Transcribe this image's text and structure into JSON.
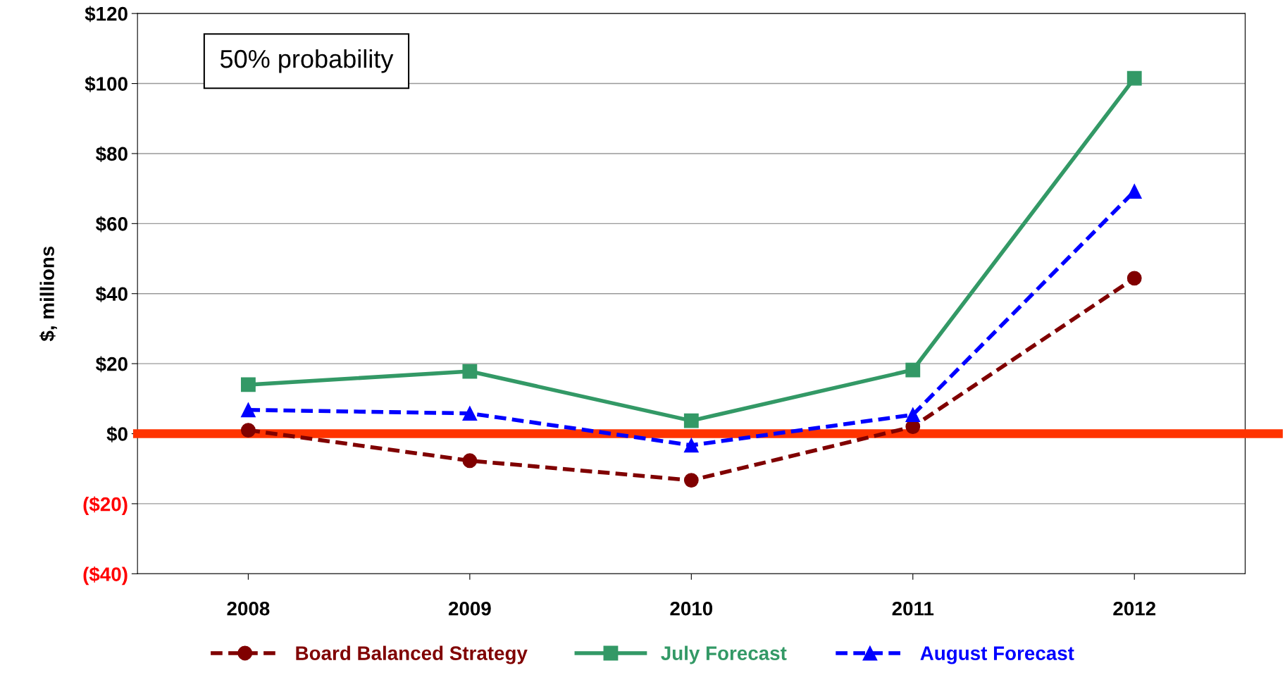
{
  "chart_data": {
    "type": "line",
    "ylabel": "$, millions",
    "categories": [
      "2008",
      "2009",
      "2010",
      "2011",
      "2012"
    ],
    "series": [
      {
        "name": "Board Balanced Strategy",
        "color": "#800000",
        "values": [
          1,
          -7.7,
          -13.3,
          2,
          44.4
        ],
        "marker": "circle",
        "line_style": "dashed"
      },
      {
        "name": "July Forecast",
        "color": "#339966",
        "values": [
          14,
          17.8,
          3.7,
          18.2,
          101.5
        ],
        "marker": "square",
        "line_style": "solid"
      },
      {
        "name": "August Forecast",
        "color": "#0000ff",
        "values": [
          6.8,
          5.8,
          -3.3,
          5.4,
          69.2
        ],
        "marker": "triangle",
        "line_style": "dashed"
      }
    ],
    "ylim": [
      -40,
      120
    ],
    "yticks": [
      {
        "value": -40,
        "label": "($40)"
      },
      {
        "value": -20,
        "label": "($20)"
      },
      {
        "value": 0,
        "label": "$0"
      },
      {
        "value": 20,
        "label": "$20"
      },
      {
        "value": 40,
        "label": "$40"
      },
      {
        "value": 60,
        "label": "$60"
      },
      {
        "value": 80,
        "label": "$80"
      },
      {
        "value": 100,
        "label": "$100"
      },
      {
        "value": 120,
        "label": "$120"
      }
    ],
    "ref_lines": [
      {
        "axis": "y",
        "value": 0,
        "color": "#ff3300",
        "line_style": "solid"
      }
    ],
    "annotations": [
      "50% probability"
    ],
    "grid": "y",
    "legend": "bottom"
  }
}
